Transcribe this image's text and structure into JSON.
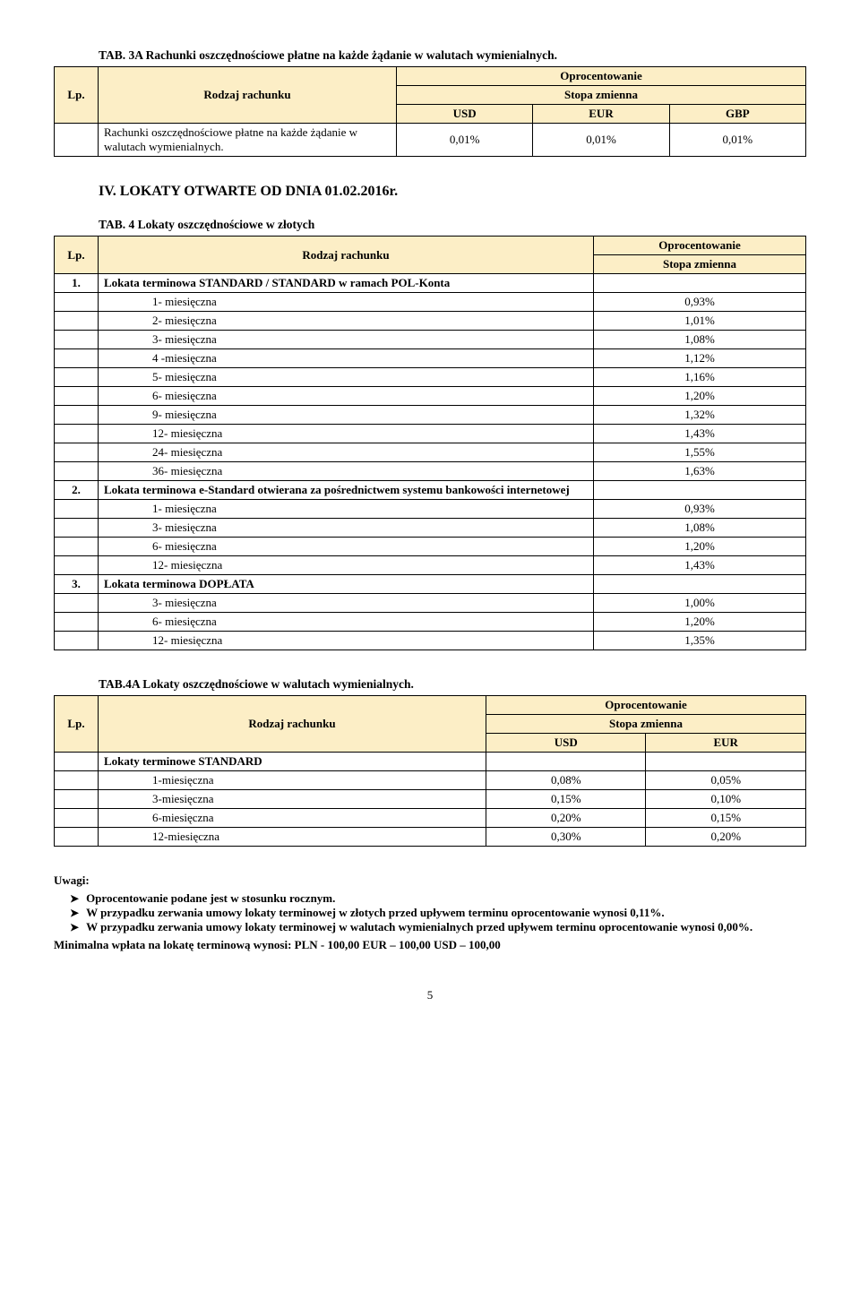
{
  "t3a": {
    "caption": "TAB. 3A Rachunki oszczędnościowe płatne na każde żądanie w walutach wymienialnych.",
    "lp_label": "Lp.",
    "col_label": "Rodzaj rachunku",
    "oproc": "Oprocentowanie",
    "stopa": "Stopa zmienna",
    "currencies": [
      "USD",
      "EUR",
      "GBP"
    ],
    "row_name": "Rachunki oszczędnościowe płatne na każde żądanie w walutach wymienialnych.",
    "vals": [
      "0,01%",
      "0,01%",
      "0,01%"
    ]
  },
  "section4_title": "IV. LOKATY OTWARTE OD DNIA  01.02.2016r.",
  "t4": {
    "caption": "TAB. 4 Lokaty oszczędnościowe w złotych",
    "lp_label": "Lp.",
    "col_label": "Rodzaj rachunku",
    "oproc": "Oprocentowanie",
    "stopa": "Stopa zmienna",
    "groups": [
      {
        "num": "1.",
        "title": "Lokata terminowa STANDARD / STANDARD w ramach POL-Konta",
        "rows": [
          [
            "1- miesięczna",
            "0,93%"
          ],
          [
            "2- miesięczna",
            "1,01%"
          ],
          [
            "3- miesięczna",
            "1,08%"
          ],
          [
            "4 -miesięczna",
            "1,12%"
          ],
          [
            "5- miesięczna",
            "1,16%"
          ],
          [
            "6- miesięczna",
            "1,20%"
          ],
          [
            "9- miesięczna",
            "1,32%"
          ],
          [
            "12- miesięczna",
            "1,43%"
          ],
          [
            "24- miesięczna",
            "1,55%"
          ],
          [
            "36- miesięczna",
            "1,63%"
          ]
        ]
      },
      {
        "num": "2.",
        "title": "Lokata terminowa e-Standard otwierana za pośrednictwem systemu bankowości internetowej",
        "rows": [
          [
            "1- miesięczna",
            "0,93%"
          ],
          [
            "3- miesięczna",
            "1,08%"
          ],
          [
            "6- miesięczna",
            "1,20%"
          ],
          [
            "12- miesięczna",
            "1,43%"
          ]
        ]
      },
      {
        "num": "3.",
        "title": "Lokata terminowa DOPŁATA",
        "rows": [
          [
            "3- miesięczna",
            "1,00%"
          ],
          [
            "6- miesięczna",
            "1,20%"
          ],
          [
            "12- miesięczna",
            "1,35%"
          ]
        ]
      }
    ]
  },
  "t4a": {
    "caption": "TAB.4A Lokaty oszczędnościowe w walutach wymienialnych.",
    "lp_label": "Lp.",
    "col_label": "Rodzaj rachunku",
    "oproc": "Oprocentowanie",
    "stopa": "Stopa zmienna",
    "currencies": [
      "USD",
      "EUR"
    ],
    "group_title": "Lokaty terminowe STANDARD",
    "rows": [
      [
        "1-miesięczna",
        "0,08%",
        "0,05%"
      ],
      [
        "3-miesięczna",
        "0,15%",
        "0,10%"
      ],
      [
        "6-miesięczna",
        "0,20%",
        "0,15%"
      ],
      [
        "12-miesięczna",
        "0,30%",
        "0,20%"
      ]
    ]
  },
  "notes": {
    "uwagi": "Uwagi:",
    "items": [
      "Oprocentowanie podane jest w stosunku rocznym.",
      "W przypadku zerwania umowy lokaty terminowej w złotych przed upływem terminu oprocentowanie wynosi 0,11%.",
      "W przypadku zerwania umowy lokaty terminowej w walutach wymienialnych przed upływem terminu oprocentowanie wynosi 0,00%."
    ],
    "min_wplata": "Minimalna wpłata na lokatę terminową wynosi: PLN - 100,00   EUR – 100,00  USD – 100,00"
  },
  "page_number": "5"
}
